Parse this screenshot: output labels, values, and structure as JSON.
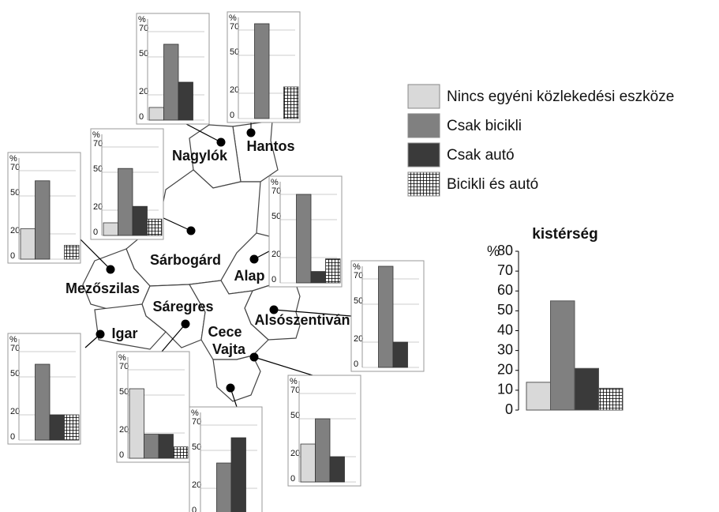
{
  "chart_data": [
    {
      "type": "bar",
      "title": "kistérség",
      "y_unit": "%",
      "series": [
        {
          "name": "Nincs egyéni közlekedési eszköze",
          "color": "#d9d9d9",
          "values": [
            14
          ]
        },
        {
          "name": "Csak bicikli",
          "color": "#808080",
          "values": [
            55
          ]
        },
        {
          "name": "Csak autó",
          "color": "#3a3a3a",
          "values": [
            21
          ]
        },
        {
          "name": "Bicikli és autó",
          "color": "#ffffff",
          "pattern": "grid",
          "values": [
            11
          ]
        }
      ],
      "ylim": [
        0,
        80
      ],
      "yticks": [
        0,
        10,
        20,
        30,
        40,
        50,
        60,
        70,
        80
      ]
    },
    {
      "type": "bar",
      "label": "Nagylók",
      "y_unit": "%",
      "values": [
        10,
        60,
        30,
        0
      ],
      "ylim": [
        0,
        80
      ],
      "yticks": [
        0,
        20,
        50,
        70
      ]
    },
    {
      "type": "bar",
      "label": "Hantos",
      "y_unit": "%",
      "values": [
        0,
        75,
        0,
        25
      ],
      "ylim": [
        0,
        80
      ],
      "yticks": [
        0,
        20,
        50,
        70
      ]
    },
    {
      "type": "bar",
      "label": "Sárbogárd",
      "y_unit": "%",
      "values": [
        10,
        53,
        23,
        13
      ],
      "ylim": [
        0,
        80
      ],
      "yticks": [
        0,
        20,
        50,
        70
      ]
    },
    {
      "type": "bar",
      "label": "Mezőszilas",
      "y_unit": "%",
      "values": [
        24,
        62,
        0,
        11
      ],
      "ylim": [
        0,
        80
      ],
      "yticks": [
        0,
        20,
        50,
        70
      ]
    },
    {
      "type": "bar",
      "label": "Alap",
      "y_unit": "%",
      "values": [
        0,
        70,
        9,
        19
      ],
      "ylim": [
        0,
        80
      ],
      "yticks": [
        0,
        20,
        50,
        70
      ]
    },
    {
      "type": "bar",
      "label": "Alsószentiván",
      "y_unit": "%",
      "values": [
        0,
        80,
        20,
        0
      ],
      "ylim": [
        0,
        80
      ],
      "yticks": [
        0,
        20,
        50,
        70
      ]
    },
    {
      "type": "bar",
      "label": "Igar",
      "y_unit": "%",
      "values": [
        0,
        60,
        20,
        20
      ],
      "ylim": [
        0,
        80
      ],
      "yticks": [
        0,
        20,
        50,
        70
      ]
    },
    {
      "type": "bar",
      "label": "Sáregres",
      "y_unit": "%",
      "values": [
        55,
        19,
        19,
        9
      ],
      "ylim": [
        0,
        80
      ],
      "yticks": [
        0,
        20,
        50,
        70
      ]
    },
    {
      "type": "bar",
      "label": "Vajta",
      "y_unit": "%",
      "values": [
        0,
        40,
        60,
        0
      ],
      "ylim": [
        0,
        80
      ],
      "yticks": [
        0,
        20,
        50,
        70
      ]
    },
    {
      "type": "bar",
      "label": "Cece",
      "y_unit": "%",
      "values": [
        30,
        50,
        20,
        0
      ],
      "ylim": [
        0,
        80
      ],
      "yticks": [
        0,
        20,
        50,
        70
      ]
    }
  ]
}
